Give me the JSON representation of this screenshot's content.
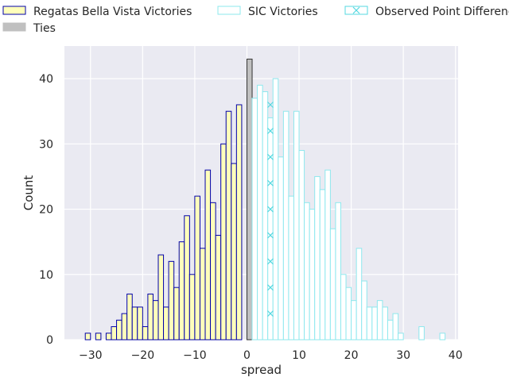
{
  "chart_data": {
    "type": "bar",
    "xlabel": "spread",
    "ylabel": "Count",
    "xlim": [
      -35,
      40.5
    ],
    "ylim": [
      0,
      45
    ],
    "x_ticks": [
      -30,
      -20,
      -10,
      0,
      10,
      20,
      30,
      40
    ],
    "y_ticks": [
      0,
      10,
      20,
      30,
      40
    ],
    "x_tick_labels": [
      "−30",
      "−20",
      "−10",
      "0",
      "10",
      "20",
      "30",
      "40"
    ],
    "y_tick_labels": [
      "0",
      "10",
      "20",
      "30",
      "40"
    ],
    "grid": true,
    "legend_placement": "top, above plot",
    "bin_width": 1,
    "series": [
      {
        "name": "Regatas Bella Vista Victories",
        "fill": "#ffffbb",
        "edge": "#0000aa",
        "x": [
          -31,
          -30,
          -29,
          -28,
          -27,
          -26,
          -25,
          -24,
          -23,
          -22,
          -21,
          -20,
          -19,
          -18,
          -17,
          -16,
          -15,
          -14,
          -13,
          -12,
          -11,
          -10,
          -9,
          -8,
          -7,
          -6,
          -5,
          -4,
          -3,
          -2,
          -1
        ],
        "values": [
          1,
          0,
          1,
          0,
          1,
          2,
          3,
          4,
          7,
          5,
          5,
          2,
          7,
          6,
          13,
          5,
          12,
          8,
          15,
          19,
          10,
          22,
          14,
          26,
          21,
          16,
          30,
          35,
          27,
          36,
          0
        ]
      },
      {
        "name": "Ties",
        "fill": "#c0c0c0",
        "edge": "#333333",
        "x": [
          0
        ],
        "values": [
          43
        ]
      },
      {
        "name": "SIC Victories",
        "fill": "#ffffff",
        "edge": "#8ee8ee",
        "x": [
          1,
          2,
          3,
          4,
          5,
          6,
          7,
          8,
          9,
          10,
          11,
          12,
          13,
          14,
          15,
          16,
          17,
          18,
          19,
          20,
          21,
          22,
          23,
          24,
          25,
          26,
          27,
          28,
          29,
          30,
          31,
          32,
          33,
          34,
          35,
          36,
          37
        ],
        "values": [
          37,
          39,
          38,
          34,
          40,
          28,
          35,
          22,
          35,
          29,
          21,
          20,
          25,
          23,
          26,
          17,
          21,
          10,
          8,
          6,
          14,
          9,
          5,
          5,
          6,
          5,
          3,
          4,
          1,
          0,
          0,
          0,
          2,
          0,
          0,
          0,
          1
        ]
      },
      {
        "name": "Observed Point Difference",
        "marker": "x",
        "color": "#55d8e0",
        "x": [
          4,
          4,
          4,
          4,
          4,
          4,
          4,
          4,
          4
        ],
        "values": [
          4,
          8,
          12,
          16,
          20,
          24,
          28,
          32,
          36
        ]
      }
    ]
  }
}
